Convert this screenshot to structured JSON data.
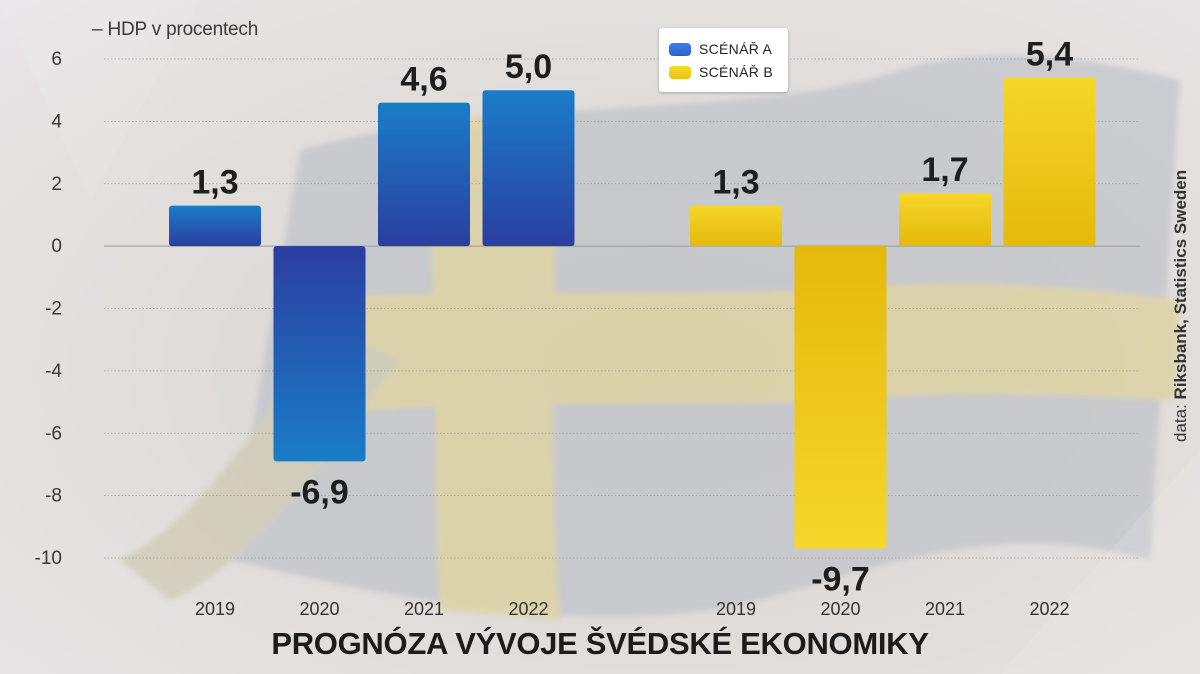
{
  "chart_data": {
    "type": "bar",
    "ylabel": "– HDP v procentech",
    "ylim": [
      -10,
      6
    ],
    "yticks": [
      6,
      4,
      2,
      0,
      -2,
      -4,
      -6,
      -8,
      -10
    ],
    "ytick_labels": [
      "6",
      "4",
      "2",
      "0",
      "-2",
      "-4",
      "-6",
      "-8",
      "-10"
    ],
    "categories": [
      "2019",
      "2020",
      "2021",
      "2022"
    ],
    "series": [
      {
        "name": "SCÉNÁŘ A",
        "color": "#1f6fc0",
        "values": [
          1.3,
          -6.9,
          4.6,
          5.0
        ],
        "value_labels": [
          "1,3",
          "-6,9",
          "4,6",
          "5,0"
        ]
      },
      {
        "name": "SCÉNÁŘ B",
        "color": "#f2cc1c",
        "values": [
          1.3,
          -9.7,
          1.7,
          5.4
        ],
        "value_labels": [
          "1,3",
          "-9,7",
          "1,7",
          "5,4"
        ]
      }
    ],
    "legend_position": "top-center",
    "grid": true,
    "title": "PROGNÓZA VÝVOJE ŠVÉDSKÉ EKONOMIKY"
  },
  "source": {
    "prefix": "data: ",
    "text": "Riksbank, Statistics Sweden"
  }
}
